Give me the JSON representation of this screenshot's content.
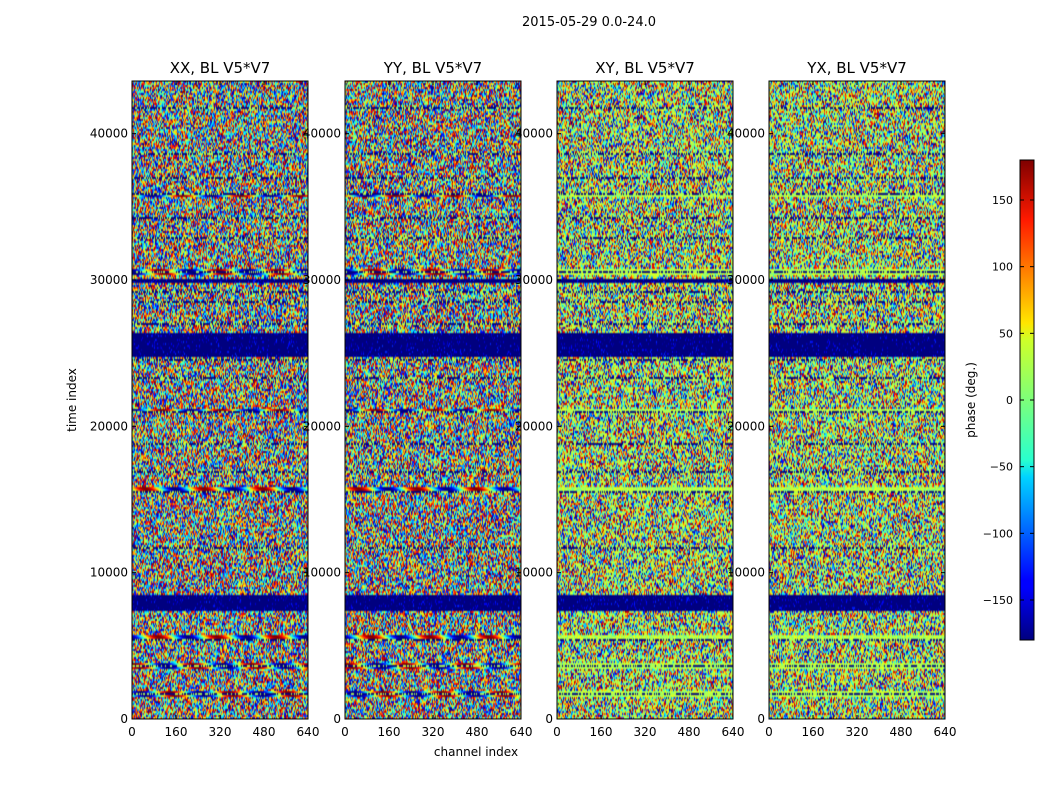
{
  "figure": {
    "suptitle": "2015-05-29 0.0-24.0"
  },
  "chart_data": {
    "type": "heatmap",
    "panels": [
      {
        "title": "XX, BL V5*V7",
        "pol": "XX"
      },
      {
        "title": "YY, BL V5*V7",
        "pol": "YY"
      },
      {
        "title": "XY, BL V5*V7",
        "pol": "XY"
      },
      {
        "title": "YX, BL V5*V7",
        "pol": "YX"
      }
    ],
    "xlabel": "channel index",
    "ylabel": "time index",
    "xlim": [
      0,
      640
    ],
    "ylim": [
      0,
      43600
    ],
    "xticks": [
      0,
      160,
      320,
      480,
      640
    ],
    "yticks": [
      0,
      10000,
      20000,
      30000,
      40000
    ],
    "xtick_labels": [
      "0",
      "160",
      "320",
      "480",
      "640"
    ],
    "ytick_labels": [
      "0",
      "10000",
      "20000",
      "30000",
      "40000"
    ],
    "colormap": "jet",
    "colorbar": {
      "label": "phase (deg.)",
      "range": [
        -180,
        180
      ],
      "ticks": [
        -150,
        -100,
        -50,
        0,
        50,
        100,
        150
      ],
      "tick_labels": [
        "−150",
        "−100",
        "−50",
        "0",
        "50",
        "100",
        "150"
      ]
    },
    "grid": false,
    "features": {
      "noise_flag_rows_time_index": [
        1800,
        3700,
        5500,
        11800,
        15600,
        17000,
        18800,
        21100,
        23400,
        24600,
        27000,
        28500,
        29300,
        30600,
        33000,
        34300,
        35900,
        37000,
        38700,
        41800
      ],
      "flagged_bands_time_index": [
        [
          7500,
          8600
        ],
        [
          24800,
          26500
        ],
        [
          29900,
          30200
        ]
      ],
      "fringe_rows_time_index": [
        1800,
        3700,
        5600,
        15800,
        21100,
        30600,
        35900
      ]
    }
  }
}
